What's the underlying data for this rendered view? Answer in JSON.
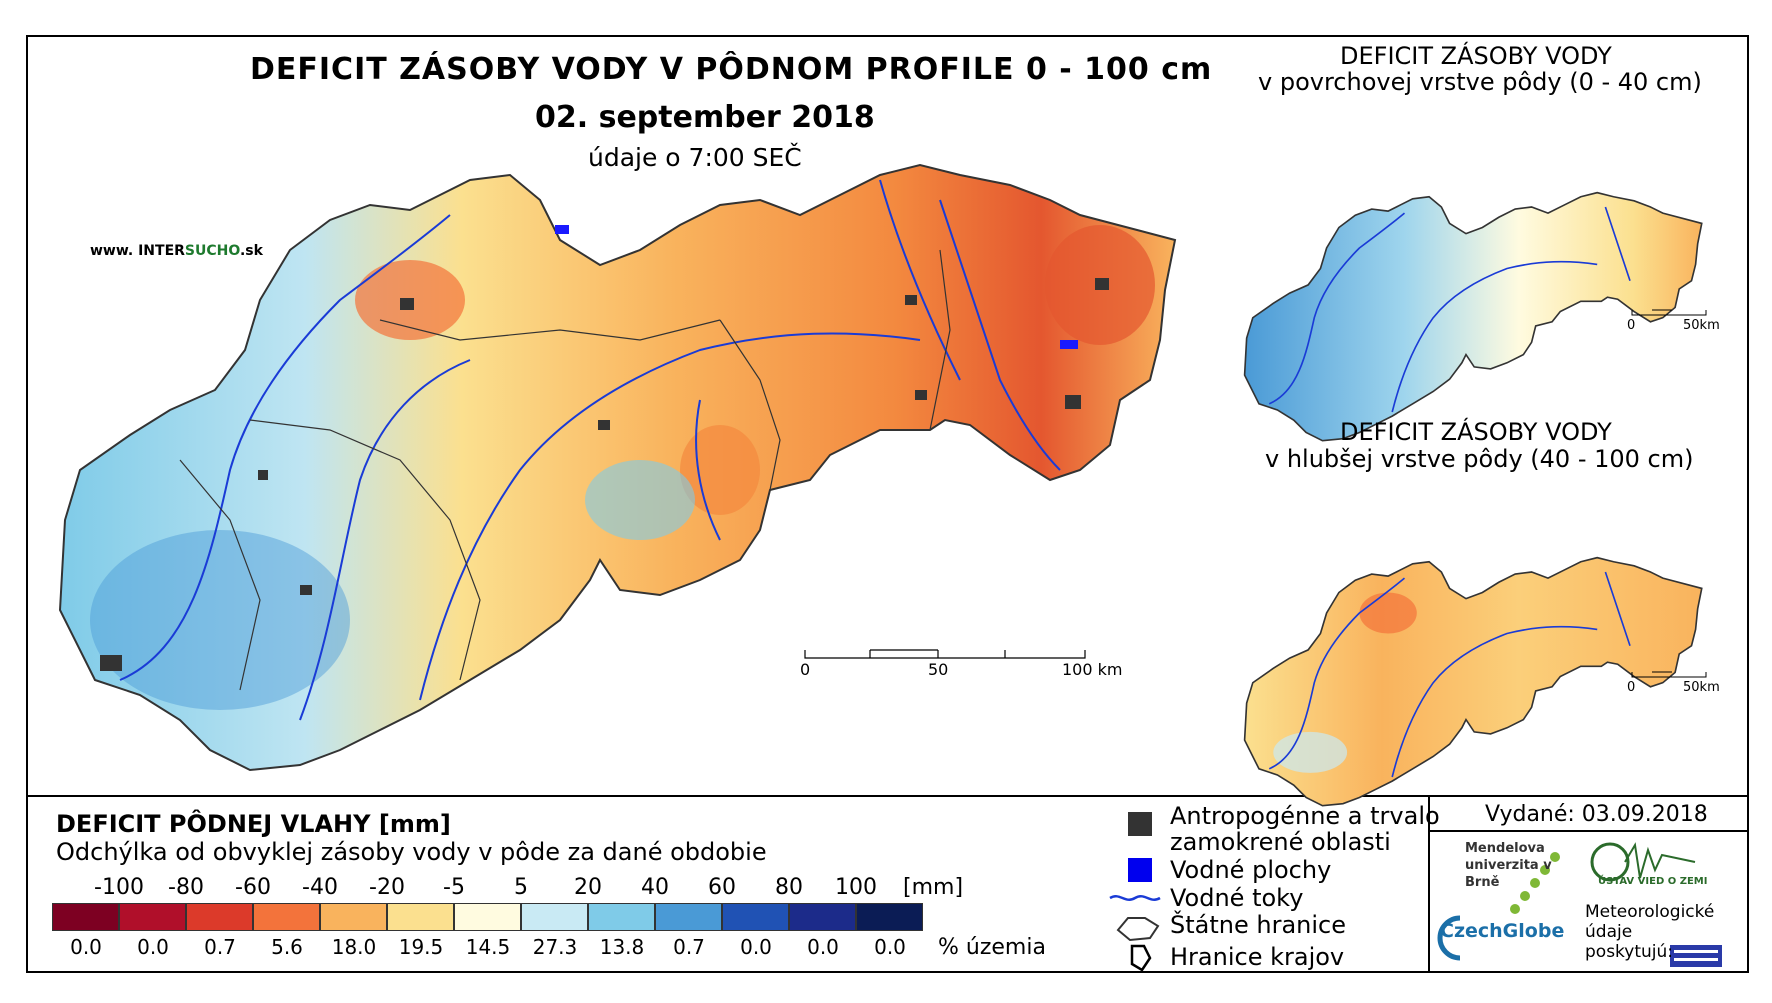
{
  "main_title": "DEFICIT ZÁSOBY VODY V PÔDNOM PROFILE 0 - 100 cm",
  "main_date": "02. september 2018",
  "main_time": "údaje o 7:00 SEČ",
  "website": {
    "prefix": "www. INTER",
    "highlight": "SUCHO",
    "suffix": ".sk"
  },
  "inset_top": {
    "line1": "DEFICIT ZÁSOBY VODY",
    "line2": "v povrchovej vrstve pôdy (0 - 40 cm)",
    "scale": [
      "0",
      "50km"
    ]
  },
  "inset_bottom": {
    "line1": "DEFICIT ZÁSOBY VODY",
    "line2": "v hlubšej vrstve pôdy (40 - 100 cm)",
    "scale": [
      "0",
      "50km"
    ]
  },
  "scale_bar": {
    "labels": [
      "0",
      "50",
      "100 km"
    ]
  },
  "legend": {
    "title": "DEFICIT PÔDNEJ VLAHY [mm]",
    "subtitle": "Odchýlka od obvyklej zásoby vody v pôde za dané obdobie",
    "class_labels": [
      "-100",
      "-80",
      "-60",
      "-40",
      "-20",
      "-5",
      "5",
      "20",
      "40",
      "60",
      "80",
      "100"
    ],
    "unit": "[mm]",
    "colors": [
      "#7d0022",
      "#b00f2a",
      "#dc3a2a",
      "#f3733b",
      "#f9b35d",
      "#fbe08f",
      "#fffbe0",
      "#c9eaf4",
      "#7fcbe8",
      "#4a9ad6",
      "#2052b4",
      "#1c2b8a",
      "#0b1c55"
    ],
    "percent_values": [
      "0.0",
      "0.0",
      "0.7",
      "5.6",
      "18.0",
      "19.5",
      "14.5",
      "27.3",
      "13.8",
      "0.7",
      "0.0",
      "0.0",
      "0.0"
    ],
    "percent_label": "% územia"
  },
  "map_key": {
    "anthropogenic": "Antropogénne a trvalo",
    "anthropogenic_2": "zamokrené oblasti",
    "water_bodies": "Vodné plochy",
    "rivers": "Vodné toky",
    "state_border": "Štátne hranice",
    "region_border": "Hranice krajov"
  },
  "issued": "Vydané: 03.09.2018",
  "logos": {
    "mendel": "Mendelova univerzita v Brně",
    "czechglobe": "CzechGlobe",
    "uvz": "ÚSTAV VIED O ZEMI",
    "meteo": "Meteorologické údaje poskytujú:"
  }
}
